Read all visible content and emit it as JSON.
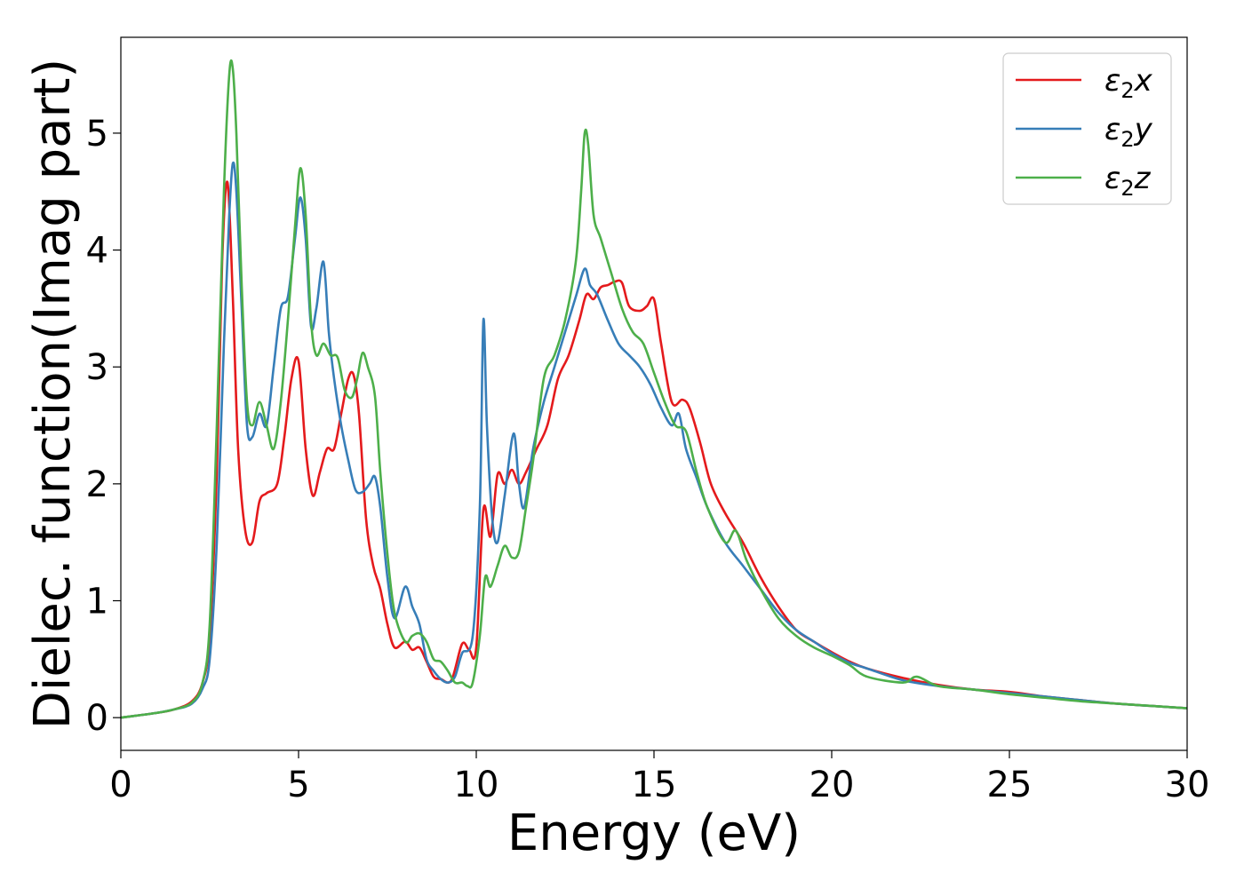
{
  "chart_data": {
    "type": "line",
    "title": "",
    "xlabel": "Energy (eV)",
    "ylabel": "Dielec. function(Imag part)",
    "xlim": [
      0,
      30
    ],
    "ylim": [
      -0.28,
      5.82
    ],
    "xticks": [
      0,
      5,
      10,
      15,
      20,
      25,
      30
    ],
    "yticks": [
      0,
      1,
      2,
      3,
      4,
      5
    ],
    "grid": false,
    "legend_position": "top-right",
    "series": [
      {
        "name": "ε₂x",
        "legend": {
          "main": "ε",
          "sub": "2",
          "suffix": "x"
        },
        "color": "#e41a1c",
        "x": [
          0,
          1,
          1.5,
          2,
          2.3,
          2.5,
          2.7,
          2.85,
          3.0,
          3.15,
          3.3,
          3.5,
          3.7,
          3.9,
          4.1,
          4.4,
          4.6,
          4.8,
          5.0,
          5.2,
          5.4,
          5.6,
          5.8,
          6.0,
          6.2,
          6.4,
          6.55,
          6.7,
          6.9,
          7.1,
          7.3,
          7.5,
          7.7,
          8.0,
          8.2,
          8.4,
          8.6,
          8.8,
          9.0,
          9.3,
          9.6,
          9.8,
          10.0,
          10.2,
          10.4,
          10.6,
          10.8,
          11.0,
          11.2,
          11.4,
          11.7,
          12.0,
          12.3,
          12.6,
          12.9,
          13.1,
          13.3,
          13.5,
          13.7,
          13.9,
          14.1,
          14.3,
          14.6,
          14.8,
          15.0,
          15.2,
          15.5,
          15.8,
          16.0,
          16.3,
          16.6,
          17.0,
          17.5,
          18.0,
          18.5,
          19.0,
          19.5,
          20.0,
          20.5,
          21.0,
          22.0,
          23.0,
          24.0,
          25.0,
          26.0,
          27.0,
          28.0,
          29.0,
          30.0
        ],
        "values": [
          0,
          0.04,
          0.07,
          0.14,
          0.3,
          0.7,
          2.1,
          3.9,
          4.58,
          3.6,
          2.3,
          1.6,
          1.5,
          1.85,
          1.92,
          2.0,
          2.4,
          2.9,
          3.05,
          2.3,
          1.9,
          2.1,
          2.3,
          2.3,
          2.6,
          2.9,
          2.93,
          2.6,
          1.7,
          1.3,
          1.1,
          0.8,
          0.6,
          0.65,
          0.58,
          0.6,
          0.48,
          0.35,
          0.33,
          0.32,
          0.63,
          0.58,
          0.6,
          1.78,
          1.55,
          2.08,
          2.0,
          2.12,
          2.0,
          2.1,
          2.3,
          2.5,
          2.9,
          3.1,
          3.4,
          3.62,
          3.58,
          3.68,
          3.7,
          3.73,
          3.72,
          3.52,
          3.48,
          3.52,
          3.58,
          3.2,
          2.7,
          2.72,
          2.65,
          2.35,
          2.0,
          1.75,
          1.5,
          1.2,
          0.95,
          0.75,
          0.65,
          0.56,
          0.48,
          0.42,
          0.34,
          0.28,
          0.24,
          0.22,
          0.18,
          0.15,
          0.12,
          0.1,
          0.08
        ]
      },
      {
        "name": "ε₂y",
        "legend": {
          "main": "ε",
          "sub": "2",
          "suffix": "y"
        },
        "color": "#377eb8",
        "x": [
          0,
          1,
          1.5,
          2,
          2.3,
          2.5,
          2.7,
          2.9,
          3.05,
          3.15,
          3.25,
          3.4,
          3.55,
          3.7,
          3.9,
          4.1,
          4.3,
          4.5,
          4.7,
          4.9,
          5.05,
          5.2,
          5.35,
          5.5,
          5.7,
          5.85,
          6.0,
          6.2,
          6.4,
          6.6,
          6.8,
          7.0,
          7.15,
          7.3,
          7.5,
          7.7,
          8.0,
          8.2,
          8.4,
          8.6,
          8.8,
          9.0,
          9.2,
          9.4,
          9.6,
          9.9,
          10.1,
          10.2,
          10.3,
          10.45,
          10.6,
          10.8,
          11.05,
          11.2,
          11.35,
          11.6,
          11.9,
          12.2,
          12.5,
          12.8,
          13.05,
          13.2,
          13.4,
          13.7,
          14.0,
          14.3,
          14.6,
          14.9,
          15.2,
          15.5,
          15.7,
          15.9,
          16.2,
          16.5,
          17.0,
          17.5,
          18.0,
          18.5,
          19.0,
          19.5,
          20.0,
          20.5,
          21.0,
          22.0,
          23.0,
          24.0,
          25.0,
          26.0,
          27.0,
          28.0,
          29.0,
          30.0
        ],
        "values": [
          0,
          0.04,
          0.07,
          0.12,
          0.25,
          0.5,
          1.5,
          3.2,
          4.3,
          4.74,
          4.5,
          3.5,
          2.5,
          2.4,
          2.6,
          2.5,
          3.0,
          3.5,
          3.6,
          4.1,
          4.45,
          4.1,
          3.35,
          3.5,
          3.9,
          3.3,
          2.9,
          2.5,
          2.2,
          1.95,
          1.93,
          2.0,
          2.06,
          1.8,
          1.2,
          0.85,
          1.12,
          0.95,
          0.8,
          0.5,
          0.4,
          0.33,
          0.3,
          0.35,
          0.55,
          0.7,
          1.8,
          3.4,
          2.5,
          1.7,
          1.5,
          1.9,
          2.43,
          2.0,
          1.8,
          2.3,
          2.7,
          3.0,
          3.3,
          3.6,
          3.84,
          3.7,
          3.62,
          3.4,
          3.2,
          3.1,
          3.0,
          2.85,
          2.65,
          2.5,
          2.6,
          2.3,
          2.05,
          1.8,
          1.5,
          1.3,
          1.1,
          0.9,
          0.75,
          0.65,
          0.55,
          0.47,
          0.42,
          0.32,
          0.27,
          0.24,
          0.21,
          0.18,
          0.15,
          0.12,
          0.1,
          0.08
        ]
      },
      {
        "name": "ε₂z",
        "legend": {
          "main": "ε",
          "sub": "2",
          "suffix": "z"
        },
        "color": "#4daf4a",
        "x": [
          0,
          1,
          1.5,
          2,
          2.3,
          2.5,
          2.7,
          2.9,
          3.05,
          3.15,
          3.25,
          3.4,
          3.55,
          3.7,
          3.9,
          4.1,
          4.3,
          4.5,
          4.7,
          4.9,
          5.05,
          5.2,
          5.35,
          5.5,
          5.7,
          5.9,
          6.1,
          6.3,
          6.5,
          6.65,
          6.8,
          6.95,
          7.15,
          7.3,
          7.5,
          7.7,
          8.0,
          8.2,
          8.4,
          8.6,
          8.8,
          9.0,
          9.2,
          9.4,
          9.6,
          9.75,
          9.9,
          10.1,
          10.25,
          10.4,
          10.6,
          10.8,
          11.0,
          11.2,
          11.4,
          11.6,
          11.9,
          12.2,
          12.5,
          12.8,
          12.95,
          13.05,
          13.15,
          13.3,
          13.5,
          13.8,
          14.1,
          14.4,
          14.7,
          15.0,
          15.3,
          15.6,
          15.9,
          16.2,
          16.5,
          17.0,
          17.3,
          17.6,
          18.0,
          18.5,
          19.0,
          19.5,
          20.0,
          20.5,
          21.0,
          22.0,
          22.4,
          23.0,
          24.0,
          25.0,
          26.0,
          27.0,
          28.0,
          29.0,
          30.0
        ],
        "values": [
          0,
          0.04,
          0.07,
          0.13,
          0.3,
          0.8,
          2.5,
          4.5,
          5.5,
          5.55,
          5.0,
          3.7,
          2.7,
          2.5,
          2.7,
          2.5,
          2.3,
          2.7,
          3.4,
          4.2,
          4.7,
          4.3,
          3.4,
          3.1,
          3.2,
          3.1,
          3.08,
          2.8,
          2.74,
          2.9,
          3.12,
          3.0,
          2.75,
          2.1,
          1.4,
          0.9,
          0.65,
          0.7,
          0.72,
          0.65,
          0.5,
          0.48,
          0.4,
          0.3,
          0.3,
          0.27,
          0.3,
          0.7,
          1.2,
          1.12,
          1.3,
          1.47,
          1.37,
          1.42,
          1.8,
          2.2,
          2.9,
          3.1,
          3.4,
          3.9,
          4.5,
          5.0,
          4.9,
          4.3,
          4.1,
          3.8,
          3.5,
          3.3,
          3.2,
          2.95,
          2.7,
          2.5,
          2.45,
          2.1,
          1.8,
          1.5,
          1.6,
          1.35,
          1.1,
          0.85,
          0.7,
          0.6,
          0.53,
          0.45,
          0.35,
          0.3,
          0.35,
          0.27,
          0.24,
          0.2,
          0.17,
          0.14,
          0.12,
          0.1,
          0.08
        ]
      }
    ]
  }
}
